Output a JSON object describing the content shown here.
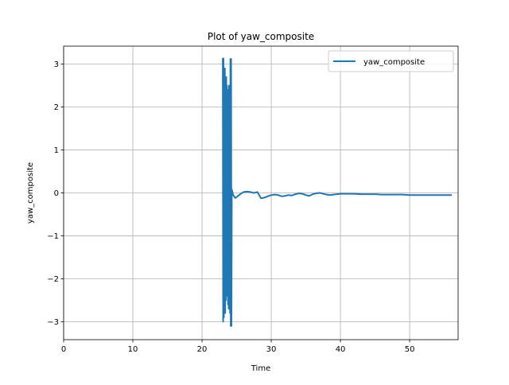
{
  "figure": {
    "title": "Plot of yaw_composite"
  },
  "chart_data": {
    "type": "line",
    "title": "Plot of yaw_composite",
    "xlabel": "Time",
    "ylabel": "yaw_composite",
    "xlim": [
      0,
      57.0
    ],
    "ylim": [
      -3.42,
      3.42
    ],
    "xticks": [
      0,
      10,
      20,
      30,
      40,
      50
    ],
    "xtick_labels": [
      "0",
      "10",
      "20",
      "30",
      "40",
      "50"
    ],
    "yticks": [
      -3,
      -2,
      -1,
      0,
      1,
      2,
      3
    ],
    "ytick_labels": [
      "−3",
      "−2",
      "−1",
      "0",
      "1",
      "2",
      "3"
    ],
    "grid": true,
    "legend": {
      "position": "top-right",
      "entries": [
        "yaw_composite"
      ]
    },
    "colors": {
      "series": "#1f77b4",
      "grid": "#b0b0b0"
    },
    "series": [
      {
        "name": "yaw_composite",
        "x": [
          23.0,
          23.05,
          23.1,
          23.15,
          23.2,
          23.25,
          23.3,
          23.35,
          23.4,
          23.45,
          23.5,
          23.55,
          23.6,
          23.65,
          23.7,
          23.75,
          23.8,
          23.85,
          23.9,
          23.95,
          24.0,
          24.05,
          24.1,
          24.15,
          24.2,
          24.25,
          24.3,
          24.5,
          24.8,
          25.2,
          25.6,
          26.0,
          26.5,
          27.0,
          27.5,
          28.0,
          28.5,
          28.7,
          29.0,
          29.5,
          30.0,
          30.5,
          31.0,
          31.5,
          32.0,
          32.5,
          33.0,
          33.5,
          34.0,
          34.5,
          35.0,
          35.5,
          36.0,
          36.5,
          37.0,
          37.5,
          38.0,
          38.5,
          39.0,
          39.5,
          40.0,
          40.5,
          41.0,
          42.0,
          43.0,
          44.0,
          45.0,
          46.0,
          47.0,
          48.0,
          49.0,
          50.0,
          51.0,
          52.0,
          53.0,
          54.0,
          55.0,
          56.0
        ],
        "y": [
          3.13,
          -3.0,
          3.13,
          -2.9,
          2.8,
          -2.7,
          2.9,
          -2.8,
          2.6,
          -2.5,
          2.7,
          -2.3,
          2.5,
          -2.4,
          2.4,
          -2.6,
          2.3,
          -2.7,
          2.5,
          -2.2,
          2.2,
          -2.8,
          3.12,
          -3.1,
          3.12,
          -3.1,
          0.08,
          -0.05,
          -0.12,
          -0.07,
          -0.02,
          0.02,
          0.03,
          0.02,
          0.0,
          0.02,
          -0.12,
          -0.12,
          -0.11,
          -0.08,
          -0.05,
          -0.04,
          -0.05,
          -0.08,
          -0.07,
          -0.05,
          -0.06,
          -0.03,
          -0.01,
          -0.02,
          -0.05,
          -0.07,
          -0.03,
          -0.01,
          0.0,
          -0.02,
          -0.04,
          -0.05,
          -0.04,
          -0.03,
          -0.02,
          -0.02,
          -0.02,
          -0.02,
          -0.03,
          -0.03,
          -0.03,
          -0.04,
          -0.04,
          -0.04,
          -0.04,
          -0.05,
          -0.05,
          -0.05,
          -0.05,
          -0.05,
          -0.05,
          -0.05
        ]
      }
    ]
  }
}
